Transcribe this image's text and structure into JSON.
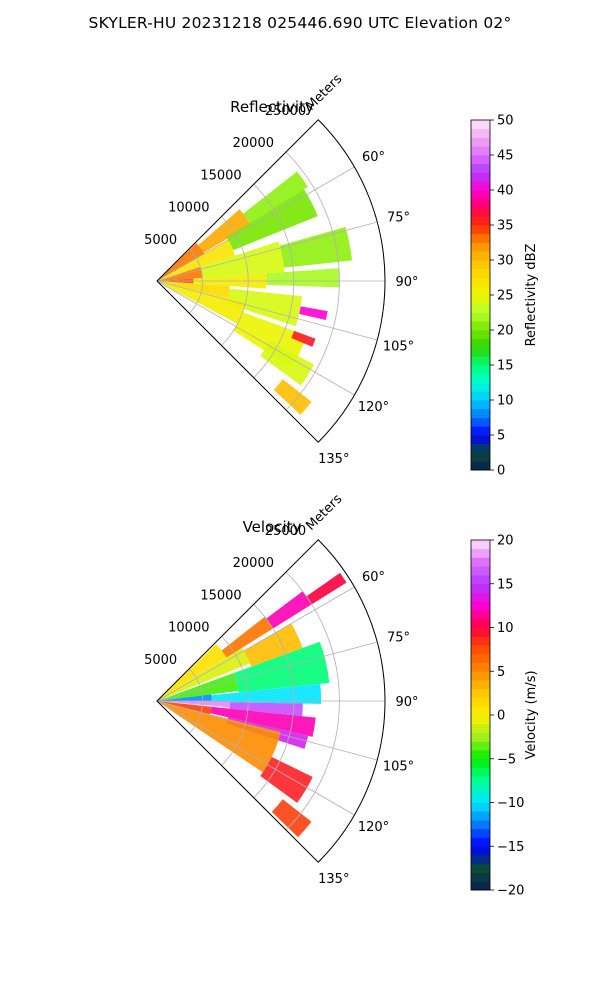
{
  "figure": {
    "suptitle": "SKYLER-HU  20231218  025446.690 UTC Elevation 02°"
  },
  "chart_data": [
    {
      "type": "polar-sector",
      "title": "Reflectivity",
      "radial_label": "Meters",
      "range_ticks": [
        5000,
        10000,
        15000,
        20000,
        25000
      ],
      "range_tick_labels": [
        "5000",
        "10000",
        "15000",
        "20000",
        "25000"
      ],
      "range_max": 25000,
      "azimuth_ticks_deg": [
        60,
        75,
        90,
        105,
        120,
        135
      ],
      "azimuth_tick_labels": [
        "60°",
        "75°",
        "90°",
        "105°",
        "120°",
        "135°"
      ],
      "azimuth_range_deg": [
        45,
        135
      ],
      "grid": true,
      "colorbar": {
        "label": "Reflectivity dBZ",
        "min": 0,
        "max": 50,
        "ticks": [
          0,
          5,
          10,
          15,
          20,
          25,
          30,
          35,
          40,
          45,
          50
        ],
        "tick_labels": [
          "0",
          "5",
          "10",
          "15",
          "20",
          "25",
          "30",
          "35",
          "40",
          "45",
          "50"
        ],
        "stops": [
          {
            "value": 0,
            "color": "#0b1f4f"
          },
          {
            "value": 2.5,
            "color": "#0a4a3a"
          },
          {
            "value": 5,
            "color": "#0000ff"
          },
          {
            "value": 7.5,
            "color": "#0078ff"
          },
          {
            "value": 10,
            "color": "#00c8ff"
          },
          {
            "value": 12.5,
            "color": "#00ffd2"
          },
          {
            "value": 15,
            "color": "#00ff78"
          },
          {
            "value": 17.5,
            "color": "#2ad600"
          },
          {
            "value": 20,
            "color": "#78e600"
          },
          {
            "value": 22.5,
            "color": "#b4ff2a"
          },
          {
            "value": 25,
            "color": "#ecf500"
          },
          {
            "value": 27.5,
            "color": "#ffe000"
          },
          {
            "value": 30,
            "color": "#ffbe00"
          },
          {
            "value": 32.5,
            "color": "#ff8c00"
          },
          {
            "value": 35,
            "color": "#ff2a00"
          },
          {
            "value": 37.5,
            "color": "#ff0060"
          },
          {
            "value": 40,
            "color": "#ff00d2"
          },
          {
            "value": 42.5,
            "color": "#b438ff"
          },
          {
            "value": 45,
            "color": "#e070ff"
          },
          {
            "value": 47.5,
            "color": "#f0a8f0"
          },
          {
            "value": 50,
            "color": "#ffe6ff"
          }
        ]
      },
      "echo_regions": [
        {
          "az": [
            46,
            60
          ],
          "r": [
            0,
            6000
          ],
          "value": 33
        },
        {
          "az": [
            49,
            59
          ],
          "r": [
            6000,
            12000
          ],
          "value": 31
        },
        {
          "az": [
            52,
            58
          ],
          "r": [
            12000,
            19500
          ],
          "value": 21
        },
        {
          "az": [
            58,
            68
          ],
          "r": [
            9000,
            19000
          ],
          "value": 20
        },
        {
          "az": [
            60,
            72
          ],
          "r": [
            0,
            9000
          ],
          "value": 27
        },
        {
          "az": [
            72,
            86
          ],
          "r": [
            0,
            5000
          ],
          "value": 33
        },
        {
          "az": [
            72,
            86
          ],
          "r": [
            5000,
            14000
          ],
          "value": 24
        },
        {
          "az": [
            74,
            84
          ],
          "r": [
            14000,
            21500
          ],
          "value": 21
        },
        {
          "az": [
            86,
            94
          ],
          "r": [
            0,
            4000
          ],
          "value": 34
        },
        {
          "az": [
            86,
            94
          ],
          "r": [
            4000,
            12000
          ],
          "value": 26
        },
        {
          "az": [
            86,
            92
          ],
          "r": [
            12000,
            20000
          ],
          "value": 22
        },
        {
          "az": [
            94,
            104
          ],
          "r": [
            0,
            8000
          ],
          "value": 28
        },
        {
          "az": [
            96,
            108
          ],
          "r": [
            8000,
            16000
          ],
          "value": 24
        },
        {
          "az": [
            104,
            118
          ],
          "r": [
            0,
            10000
          ],
          "value": 26
        },
        {
          "az": [
            110,
            123
          ],
          "r": [
            10000,
            17500
          ],
          "value": 25
        },
        {
          "az": [
            118,
            126
          ],
          "r": [
            14000,
            19500
          ],
          "value": 24
        },
        {
          "az": [
            128,
            133
          ],
          "r": [
            17500,
            21500
          ],
          "value": 30
        },
        {
          "az": [
            100,
            103
          ],
          "r": [
            16000,
            19000
          ],
          "value": 40
        },
        {
          "az": [
            110,
            113
          ],
          "r": [
            16000,
            18500
          ],
          "value": 36
        }
      ]
    },
    {
      "type": "polar-sector",
      "title": "Velocity",
      "radial_label": "Meters",
      "range_ticks": [
        5000,
        10000,
        15000,
        20000,
        25000
      ],
      "range_tick_labels": [
        "5000",
        "10000",
        "15000",
        "20000",
        "25000"
      ],
      "range_max": 25000,
      "azimuth_ticks_deg": [
        60,
        75,
        90,
        105,
        120,
        135
      ],
      "azimuth_tick_labels": [
        "60°",
        "75°",
        "90°",
        "105°",
        "120°",
        "135°"
      ],
      "azimuth_range_deg": [
        45,
        135
      ],
      "grid": true,
      "colorbar": {
        "label": "Velocity (m/s)",
        "min": -20,
        "max": 20,
        "ticks": [
          -20,
          -15,
          -10,
          -5,
          0,
          5,
          10,
          15,
          20
        ],
        "tick_labels": [
          "−20",
          "−15",
          "−10",
          "−5",
          "0",
          "5",
          "10",
          "15",
          "20"
        ],
        "stops": [
          {
            "value": -20,
            "color": "#0b1f4f"
          },
          {
            "value": -17.5,
            "color": "#0a4a3a"
          },
          {
            "value": -15,
            "color": "#0000ff"
          },
          {
            "value": -12.5,
            "color": "#0078ff"
          },
          {
            "value": -10,
            "color": "#00e6ff"
          },
          {
            "value": -7.5,
            "color": "#00ff96"
          },
          {
            "value": -5,
            "color": "#00f000"
          },
          {
            "value": -2.5,
            "color": "#a0f01e"
          },
          {
            "value": 0,
            "color": "#fff000"
          },
          {
            "value": 2.5,
            "color": "#ffc800"
          },
          {
            "value": 5,
            "color": "#ff8c00"
          },
          {
            "value": 7.5,
            "color": "#ff5000"
          },
          {
            "value": 10,
            "color": "#ff0040"
          },
          {
            "value": 12.5,
            "color": "#ff00d2"
          },
          {
            "value": 15,
            "color": "#b438ff"
          },
          {
            "value": 17.5,
            "color": "#e070ff"
          },
          {
            "value": 20,
            "color": "#ffe6ff"
          }
        ]
      },
      "echo_regions": [
        {
          "az": [
            46,
            58
          ],
          "r": [
            0,
            9000
          ],
          "value": 1
        },
        {
          "az": [
            52,
            58
          ],
          "r": [
            9000,
            15000
          ],
          "value": 6
        },
        {
          "az": [
            53,
            58
          ],
          "r": [
            15000,
            20000
          ],
          "value": 12
        },
        {
          "az": [
            55,
            58
          ],
          "r": [
            20000,
            24500
          ],
          "value": 10
        },
        {
          "az": [
            58,
            68
          ],
          "r": [
            0,
            11000
          ],
          "value": -1
        },
        {
          "az": [
            60,
            70
          ],
          "r": [
            11000,
            17000
          ],
          "value": 3
        },
        {
          "az": [
            70,
            83
          ],
          "r": [
            0,
            9000
          ],
          "value": -4
        },
        {
          "az": [
            70,
            84
          ],
          "r": [
            9000,
            19000
          ],
          "value": -7
        },
        {
          "az": [
            83,
            90
          ],
          "r": [
            0,
            6000
          ],
          "value": -12
        },
        {
          "az": [
            84,
            91
          ],
          "r": [
            6000,
            18000
          ],
          "value": -10
        },
        {
          "az": [
            90,
            95
          ],
          "r": [
            0,
            8000
          ],
          "value": 18
        },
        {
          "az": [
            91,
            96
          ],
          "r": [
            8000,
            16000
          ],
          "value": 16
        },
        {
          "az": [
            96,
            103
          ],
          "r": [
            6000,
            17500
          ],
          "value": 12
        },
        {
          "az": [
            103,
            108
          ],
          "r": [
            8000,
            17000
          ],
          "value": 14
        },
        {
          "az": [
            96,
            104
          ],
          "r": [
            0,
            6000
          ],
          "value": 8
        },
        {
          "az": [
            104,
            124
          ],
          "r": [
            0,
            14000
          ],
          "value": 5
        },
        {
          "az": [
            116,
            126
          ],
          "r": [
            14000,
            19000
          ],
          "value": 9
        },
        {
          "az": [
            128,
            134
          ],
          "r": [
            17500,
            21500
          ],
          "value": 8
        }
      ]
    }
  ]
}
